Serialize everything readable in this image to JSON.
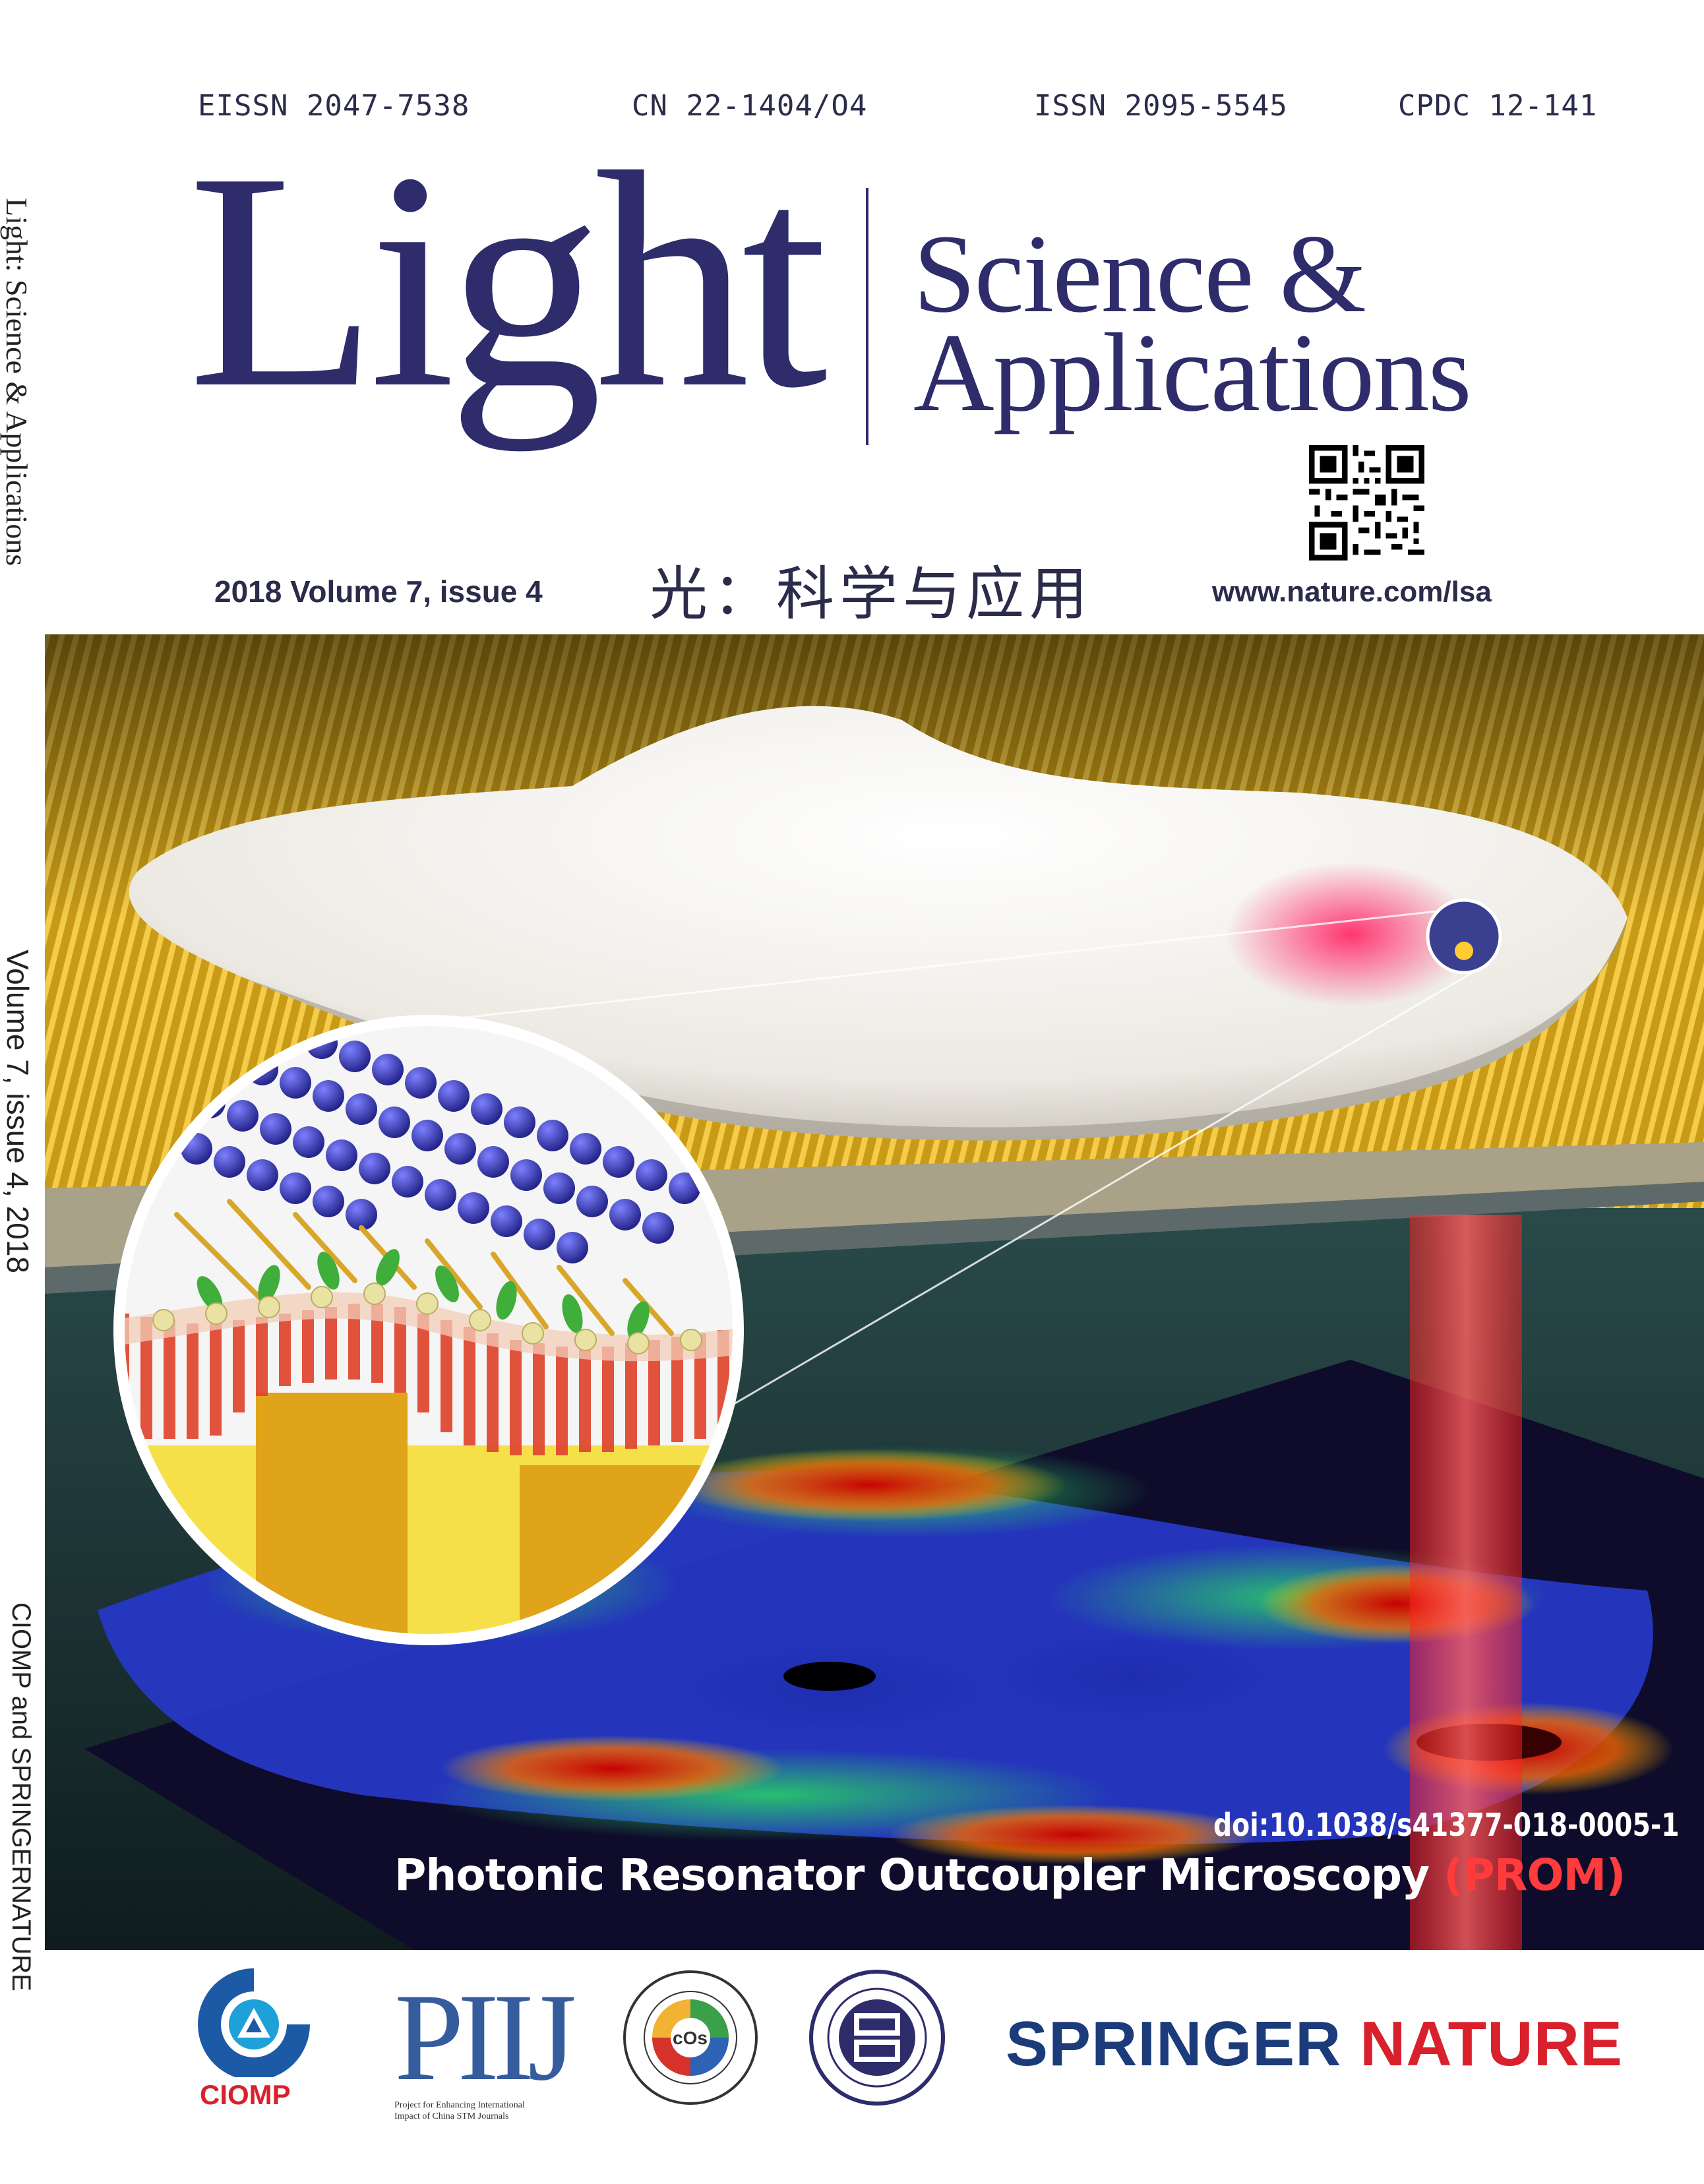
{
  "header": {
    "eissn": "EISSN 2047-7538",
    "cn": "CN 22-1404/O4",
    "issn": "ISSN 2095-5545",
    "cpdc": "CPDC 12-141"
  },
  "title": {
    "main": "Light",
    "sub_line1": "Science &",
    "sub_line2": "Applications"
  },
  "issue": "2018  Volume 7, issue 4",
  "chinese_title": "光：科学与应用",
  "url": "www.nature.com/lsa",
  "spine": {
    "title": "Light: Science & Applications",
    "volume": "Volume 7, issue 4, 2018",
    "publisher": "CIOMP and SPRINGERNATURE"
  },
  "cover": {
    "doi": "doi:10.1038/s41377-018-0005-1",
    "caption_main": "Photonic Resonator Outcoupler Microscopy ",
    "caption_highlight": "(PROM)"
  },
  "logos": {
    "ciomp": "CIOMP",
    "piij": "PIIJ",
    "piij_note": "Project for Enhancing International Impact of China STM Journals",
    "cos": "cOs",
    "springer_1": "SPRINGER",
    "springer_2": "NATURE"
  },
  "colors": {
    "brand_navy": "#2e2c6b",
    "springer_blue": "#1c3b7a",
    "springer_red": "#d8212c",
    "piij_blue": "#355c9c"
  }
}
